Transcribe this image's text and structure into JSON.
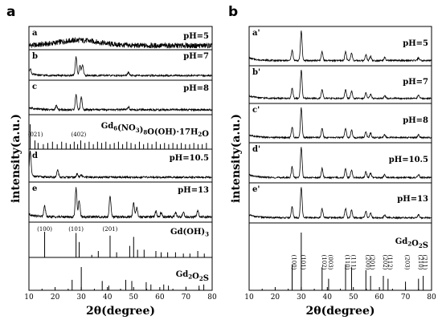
{
  "panels": {
    "a": {
      "letter": "a",
      "rows": [
        {
          "letter": "a",
          "label": "pH=5"
        },
        {
          "letter": "b",
          "label": "pH=7"
        },
        {
          "letter": "c",
          "label": "pH=8"
        },
        {
          "letter": "",
          "label": "Gd6(NO3)8O(OH)·17H2O"
        },
        {
          "letter": "d",
          "label": "pH=10.5"
        },
        {
          "letter": "e",
          "label": "pH=13"
        },
        {
          "letter": "",
          "label": "Gd(OH)3"
        },
        {
          "letter": "",
          "label": "Gd2O2S"
        }
      ],
      "hkl_labels": [
        {
          "row": 3,
          "x": 12.5,
          "text": "(021)"
        },
        {
          "row": 3,
          "x": 29,
          "text": "(402)"
        },
        {
          "row": 6,
          "x": 16,
          "text": "(100)"
        },
        {
          "row": 6,
          "x": 28,
          "text": "(101)"
        },
        {
          "row": 6,
          "x": 41,
          "text": "(201)"
        }
      ]
    },
    "b": {
      "letter": "b",
      "rows": [
        {
          "letter": "a'",
          "label": "pH=5"
        },
        {
          "letter": "b'",
          "label": "pH=7"
        },
        {
          "letter": "c'",
          "label": "pH=8"
        },
        {
          "letter": "d'",
          "label": "pH=10.5"
        },
        {
          "letter": "e'",
          "label": "pH=13"
        },
        {
          "letter": "",
          "label": "Gd2O2S"
        }
      ],
      "hkl_labels": [
        {
          "x": 26.5,
          "text": "(100)"
        },
        {
          "x": 30,
          "text": "(101)"
        },
        {
          "x": 38,
          "text": "(102)"
        },
        {
          "x": 40.5,
          "text": "(003)"
        },
        {
          "x": 47,
          "text": "(110)"
        },
        {
          "x": 49.3,
          "text": "(111)"
        },
        {
          "x": 54.8,
          "text": "(200)"
        },
        {
          "x": 56.6,
          "text": "(201)"
        },
        {
          "x": 61.5,
          "text": "(202)"
        },
        {
          "x": 63.3,
          "text": "(112)"
        },
        {
          "x": 70,
          "text": "(203)"
        },
        {
          "x": 75,
          "text": "(210)"
        },
        {
          "x": 76.8,
          "text": "(211)"
        }
      ]
    }
  },
  "chart_data": [
    {
      "type": "line",
      "panel": "a",
      "xlabel": "2θ(degree)",
      "ylabel": "intensity(a.u.)",
      "xlim": [
        10,
        80
      ],
      "xticks": [
        10,
        20,
        30,
        40,
        50,
        60,
        70,
        80
      ],
      "series": [
        {
          "name": "pH=5",
          "pattern": "amorphous",
          "peaks": [],
          "hump": [
            29,
            8
          ]
        },
        {
          "name": "pH=7",
          "pattern": "measured",
          "peaks": [
            [
              28,
              0.85
            ],
            [
              29.5,
              0.45
            ],
            [
              30.5,
              0.5
            ],
            [
              10.5,
              0.25
            ],
            [
              48,
              0.15
            ]
          ]
        },
        {
          "name": "pH=8",
          "pattern": "measured",
          "peaks": [
            [
              28,
              0.6
            ],
            [
              30,
              0.5
            ],
            [
              20.5,
              0.15
            ],
            [
              48,
              0.12
            ]
          ]
        },
        {
          "name": "Gd6(NO3)8O(OH)·17H2O",
          "pattern": "reference",
          "sticks": [
            [
              10.5,
              1.0
            ],
            [
              12.3,
              0.35
            ],
            [
              13.5,
              0.25
            ],
            [
              15.5,
              0.2
            ],
            [
              17.2,
              0.25
            ],
            [
              19,
              0.3
            ],
            [
              20.8,
              0.2
            ],
            [
              22.5,
              0.3
            ],
            [
              24.2,
              0.25
            ],
            [
              25.8,
              0.2
            ],
            [
              27.3,
              0.3
            ],
            [
              28.6,
              0.2
            ],
            [
              29.8,
              0.35
            ],
            [
              31.4,
              0.25
            ],
            [
              33,
              0.3
            ],
            [
              34.6,
              0.2
            ],
            [
              36.2,
              0.3
            ],
            [
              37.8,
              0.25
            ],
            [
              39.4,
              0.3
            ],
            [
              41,
              0.2
            ],
            [
              42.6,
              0.25
            ],
            [
              44.2,
              0.3
            ],
            [
              45.8,
              0.2
            ],
            [
              47.4,
              0.3
            ],
            [
              49,
              0.25
            ],
            [
              50.6,
              0.2
            ],
            [
              52.2,
              0.3
            ],
            [
              53.8,
              0.2
            ],
            [
              55.4,
              0.25
            ],
            [
              57,
              0.2
            ],
            [
              58.6,
              0.3
            ],
            [
              60.2,
              0.2
            ],
            [
              61.8,
              0.25
            ],
            [
              63.4,
              0.2
            ],
            [
              65,
              0.25
            ],
            [
              66.6,
              0.2
            ],
            [
              68.2,
              0.25
            ],
            [
              69.8,
              0.2
            ],
            [
              71.4,
              0.2
            ],
            [
              73,
              0.25
            ],
            [
              74.6,
              0.2
            ],
            [
              76.2,
              0.2
            ],
            [
              77.8,
              0.25
            ]
          ]
        },
        {
          "name": "pH=10.5",
          "pattern": "measured",
          "peaks": [
            [
              10.5,
              1.0
            ],
            [
              21,
              0.3
            ],
            [
              28.5,
              0.15
            ],
            [
              30,
              0.1
            ]
          ]
        },
        {
          "name": "pH=13",
          "pattern": "measured",
          "peaks": [
            [
              16,
              0.35
            ],
            [
              28,
              0.95
            ],
            [
              29.2,
              0.55
            ],
            [
              41,
              0.7
            ],
            [
              50,
              0.45
            ],
            [
              51.2,
              0.3
            ],
            [
              58.5,
              0.2
            ],
            [
              60.5,
              0.15
            ],
            [
              66,
              0.15
            ],
            [
              69,
              0.15
            ],
            [
              74.5,
              0.2
            ]
          ]
        },
        {
          "name": "Gd(OH)3",
          "pattern": "reference",
          "sticks": [
            [
              16,
              1.0
            ],
            [
              28,
              0.95
            ],
            [
              29.2,
              0.6
            ],
            [
              34,
              0.1
            ],
            [
              36.5,
              0.25
            ],
            [
              41,
              0.85
            ],
            [
              43.5,
              0.2
            ],
            [
              48.5,
              0.45
            ],
            [
              50,
              0.8
            ],
            [
              51.5,
              0.3
            ],
            [
              54,
              0.3
            ],
            [
              58.5,
              0.25
            ],
            [
              60.5,
              0.2
            ],
            [
              63,
              0.2
            ],
            [
              66,
              0.2
            ],
            [
              69,
              0.15
            ],
            [
              71.5,
              0.15
            ],
            [
              74.5,
              0.25
            ],
            [
              77,
              0.15
            ]
          ]
        },
        {
          "name": "Gd2O2S",
          "pattern": "reference",
          "sticks": [
            [
              26.5,
              0.45
            ],
            [
              30,
              1.0
            ],
            [
              38,
              0.4
            ],
            [
              40.5,
              0.2
            ],
            [
              47,
              0.45
            ],
            [
              49.3,
              0.4
            ],
            [
              54.8,
              0.35
            ],
            [
              56.6,
              0.25
            ],
            [
              61.5,
              0.25
            ],
            [
              63.3,
              0.2
            ],
            [
              70,
              0.15
            ],
            [
              75,
              0.2
            ],
            [
              76.8,
              0.25
            ]
          ]
        }
      ]
    },
    {
      "type": "line",
      "panel": "b",
      "xlabel": "2θ(degree)",
      "ylabel": "intensity(a.u.)",
      "xlim": [
        10,
        80
      ],
      "xticks": [
        10,
        20,
        30,
        40,
        50,
        60,
        70,
        80
      ],
      "series": [
        {
          "name": "pH=5",
          "pattern": "measured",
          "peaks": [
            [
              26.5,
              0.35
            ],
            [
              30,
              1.0
            ],
            [
              38,
              0.3
            ],
            [
              47,
              0.3
            ],
            [
              49.3,
              0.25
            ],
            [
              54.8,
              0.2
            ],
            [
              56.6,
              0.15
            ],
            [
              62,
              0.1
            ],
            [
              75,
              0.1
            ]
          ]
        },
        {
          "name": "pH=7",
          "pattern": "measured",
          "peaks": [
            [
              26.5,
              0.35
            ],
            [
              30,
              1.0
            ],
            [
              38,
              0.3
            ],
            [
              47,
              0.3
            ],
            [
              49.3,
              0.25
            ],
            [
              54.8,
              0.2
            ],
            [
              56.6,
              0.15
            ],
            [
              62,
              0.1
            ],
            [
              75,
              0.1
            ]
          ]
        },
        {
          "name": "pH=8",
          "pattern": "measured",
          "peaks": [
            [
              26.5,
              0.35
            ],
            [
              30,
              1.0
            ],
            [
              38,
              0.3
            ],
            [
              47,
              0.3
            ],
            [
              49.3,
              0.25
            ],
            [
              54.8,
              0.2
            ],
            [
              56.6,
              0.15
            ],
            [
              62,
              0.1
            ],
            [
              75,
              0.1
            ]
          ]
        },
        {
          "name": "pH=10.5",
          "pattern": "measured",
          "peaks": [
            [
              26.5,
              0.35
            ],
            [
              30,
              1.0
            ],
            [
              38,
              0.3
            ],
            [
              47,
              0.3
            ],
            [
              49.3,
              0.25
            ],
            [
              54.8,
              0.2
            ],
            [
              56.6,
              0.15
            ],
            [
              62,
              0.1
            ],
            [
              75,
              0.1
            ]
          ]
        },
        {
          "name": "pH=13",
          "pattern": "measured",
          "peaks": [
            [
              26.5,
              0.35
            ],
            [
              30,
              1.0
            ],
            [
              38,
              0.3
            ],
            [
              47,
              0.3
            ],
            [
              49.3,
              0.25
            ],
            [
              54.8,
              0.2
            ],
            [
              56.6,
              0.15
            ],
            [
              62,
              0.1
            ],
            [
              75,
              0.1
            ]
          ]
        },
        {
          "name": "Gd2O2S",
          "pattern": "reference",
          "sticks": [
            [
              26.5,
              0.45
            ],
            [
              30,
              1.0
            ],
            [
              38,
              0.4
            ],
            [
              40.5,
              0.2
            ],
            [
              47,
              0.45
            ],
            [
              49.3,
              0.4
            ],
            [
              54.8,
              0.35
            ],
            [
              56.6,
              0.25
            ],
            [
              61.5,
              0.25
            ],
            [
              63.3,
              0.2
            ],
            [
              70,
              0.15
            ],
            [
              75,
              0.2
            ],
            [
              76.8,
              0.25
            ]
          ]
        }
      ]
    }
  ]
}
